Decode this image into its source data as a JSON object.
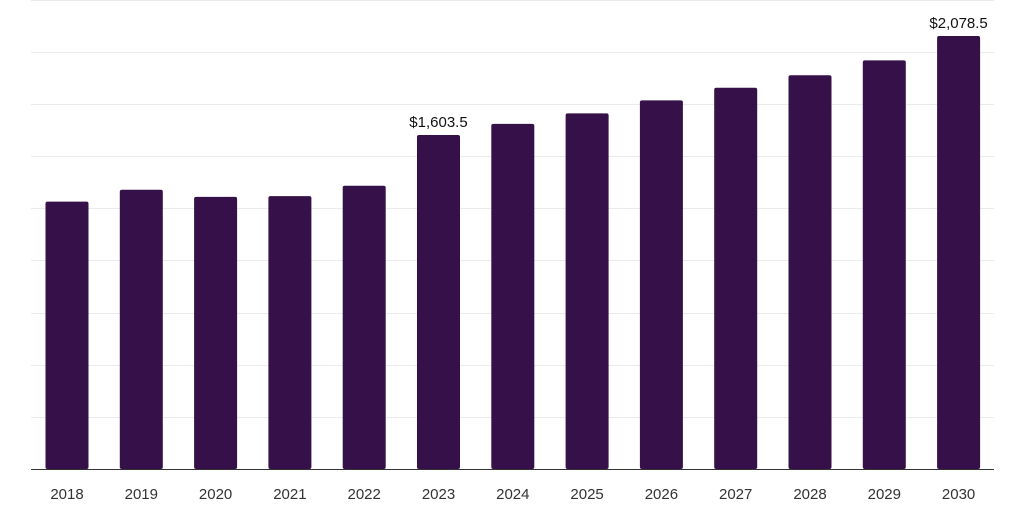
{
  "chart_data": {
    "type": "bar",
    "title": "",
    "xlabel": "",
    "ylabel": "",
    "categories": [
      "2018",
      "2019",
      "2020",
      "2021",
      "2022",
      "2023",
      "2024",
      "2025",
      "2026",
      "2027",
      "2028",
      "2029",
      "2030"
    ],
    "values": [
      1283.7,
      1340.4,
      1306.3,
      1310.0,
      1359.4,
      1603.5,
      1656.4,
      1707.2,
      1769.3,
      1829.9,
      1890.4,
      1961.5,
      2078.5
    ],
    "data_labels": [
      {
        "category": "2023",
        "text": "$1,603.5"
      },
      {
        "category": "2030",
        "text": "$2,078.5"
      }
    ],
    "ylim": [
      0,
      2078.5
    ],
    "grid": true,
    "bar_color": "#361149",
    "grid_color": "#ebebeb",
    "axis_color": "#333333"
  }
}
